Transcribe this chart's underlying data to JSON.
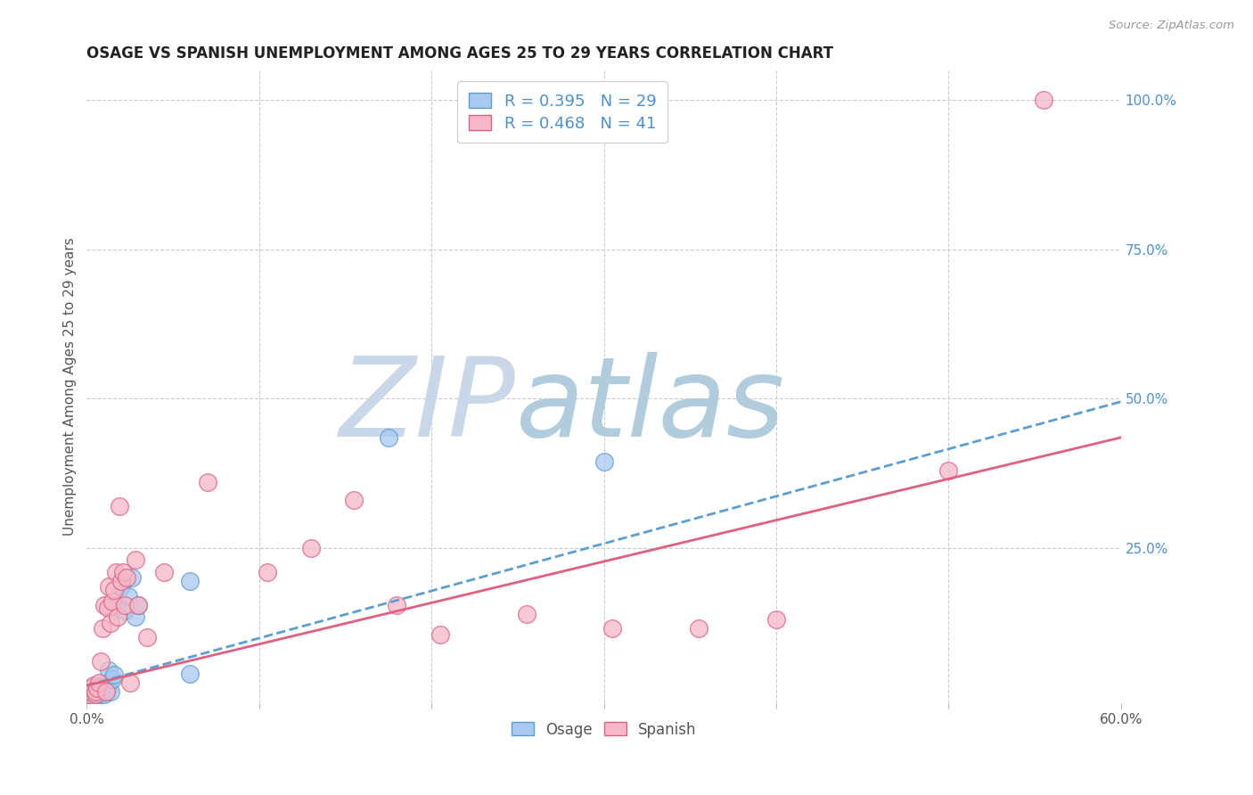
{
  "title": "OSAGE VS SPANISH UNEMPLOYMENT AMONG AGES 25 TO 29 YEARS CORRELATION CHART",
  "source": "Source: ZipAtlas.com",
  "ylabel": "Unemployment Among Ages 25 to 29 years",
  "xlim": [
    0.0,
    0.6
  ],
  "ylim": [
    -0.01,
    1.05
  ],
  "xticks": [
    0.0,
    0.1,
    0.2,
    0.3,
    0.4,
    0.5,
    0.6
  ],
  "xticklabels": [
    "0.0%",
    "",
    "",
    "",
    "",
    "",
    "60.0%"
  ],
  "yticks_right": [
    0.0,
    0.25,
    0.5,
    0.75,
    1.0
  ],
  "yticklabels_right": [
    "",
    "25.0%",
    "50.0%",
    "75.0%",
    "100.0%"
  ],
  "legend_R_osage": "R = 0.395",
  "legend_N_osage": "N = 29",
  "legend_R_spanish": "R = 0.468",
  "legend_N_spanish": "N = 41",
  "osage_color": "#A8C8F0",
  "spanish_color": "#F5B8C8",
  "osage_edge_color": "#5A9FD4",
  "spanish_edge_color": "#E06080",
  "osage_trend_color": "#5A9FD4",
  "spanish_trend_color": "#E06080",
  "background_color": "#FFFFFF",
  "grid_color": "#CCCCCC",
  "title_color": "#222222",
  "axis_label_color": "#555555",
  "right_tick_color": "#4A90D9",
  "osage_x": [
    0.001,
    0.001,
    0.002,
    0.003,
    0.004,
    0.005,
    0.006,
    0.007,
    0.007,
    0.008,
    0.009,
    0.01,
    0.011,
    0.012,
    0.013,
    0.014,
    0.015,
    0.016,
    0.018,
    0.02,
    0.022,
    0.024,
    0.026,
    0.028,
    0.03,
    0.06,
    0.06,
    0.175,
    0.3
  ],
  "osage_y": [
    0.005,
    0.01,
    0.015,
    0.005,
    0.01,
    0.0,
    0.005,
    0.01,
    0.018,
    0.005,
    0.01,
    0.005,
    0.01,
    0.015,
    0.045,
    0.01,
    0.03,
    0.038,
    0.155,
    0.185,
    0.145,
    0.17,
    0.2,
    0.135,
    0.155,
    0.04,
    0.195,
    0.435,
    0.395
  ],
  "spanish_x": [
    0.001,
    0.002,
    0.003,
    0.004,
    0.005,
    0.005,
    0.006,
    0.007,
    0.008,
    0.009,
    0.01,
    0.011,
    0.012,
    0.013,
    0.014,
    0.015,
    0.016,
    0.017,
    0.018,
    0.019,
    0.02,
    0.021,
    0.022,
    0.023,
    0.025,
    0.028,
    0.03,
    0.035,
    0.045,
    0.07,
    0.105,
    0.13,
    0.155,
    0.18,
    0.205,
    0.255,
    0.305,
    0.355,
    0.4,
    0.5,
    0.555
  ],
  "spanish_y": [
    0.005,
    0.01,
    0.015,
    0.02,
    0.005,
    0.01,
    0.015,
    0.025,
    0.06,
    0.115,
    0.155,
    0.01,
    0.15,
    0.185,
    0.125,
    0.16,
    0.18,
    0.21,
    0.135,
    0.32,
    0.195,
    0.21,
    0.155,
    0.2,
    0.025,
    0.23,
    0.155,
    0.1,
    0.21,
    0.36,
    0.21,
    0.25,
    0.33,
    0.155,
    0.105,
    0.14,
    0.115,
    0.115,
    0.13,
    0.38,
    1.0
  ],
  "osage_trend_x": [
    0.0,
    0.6
  ],
  "osage_trend_y": [
    0.02,
    0.495
  ],
  "spanish_trend_x": [
    0.0,
    0.6
  ],
  "spanish_trend_y": [
    0.02,
    0.435
  ]
}
